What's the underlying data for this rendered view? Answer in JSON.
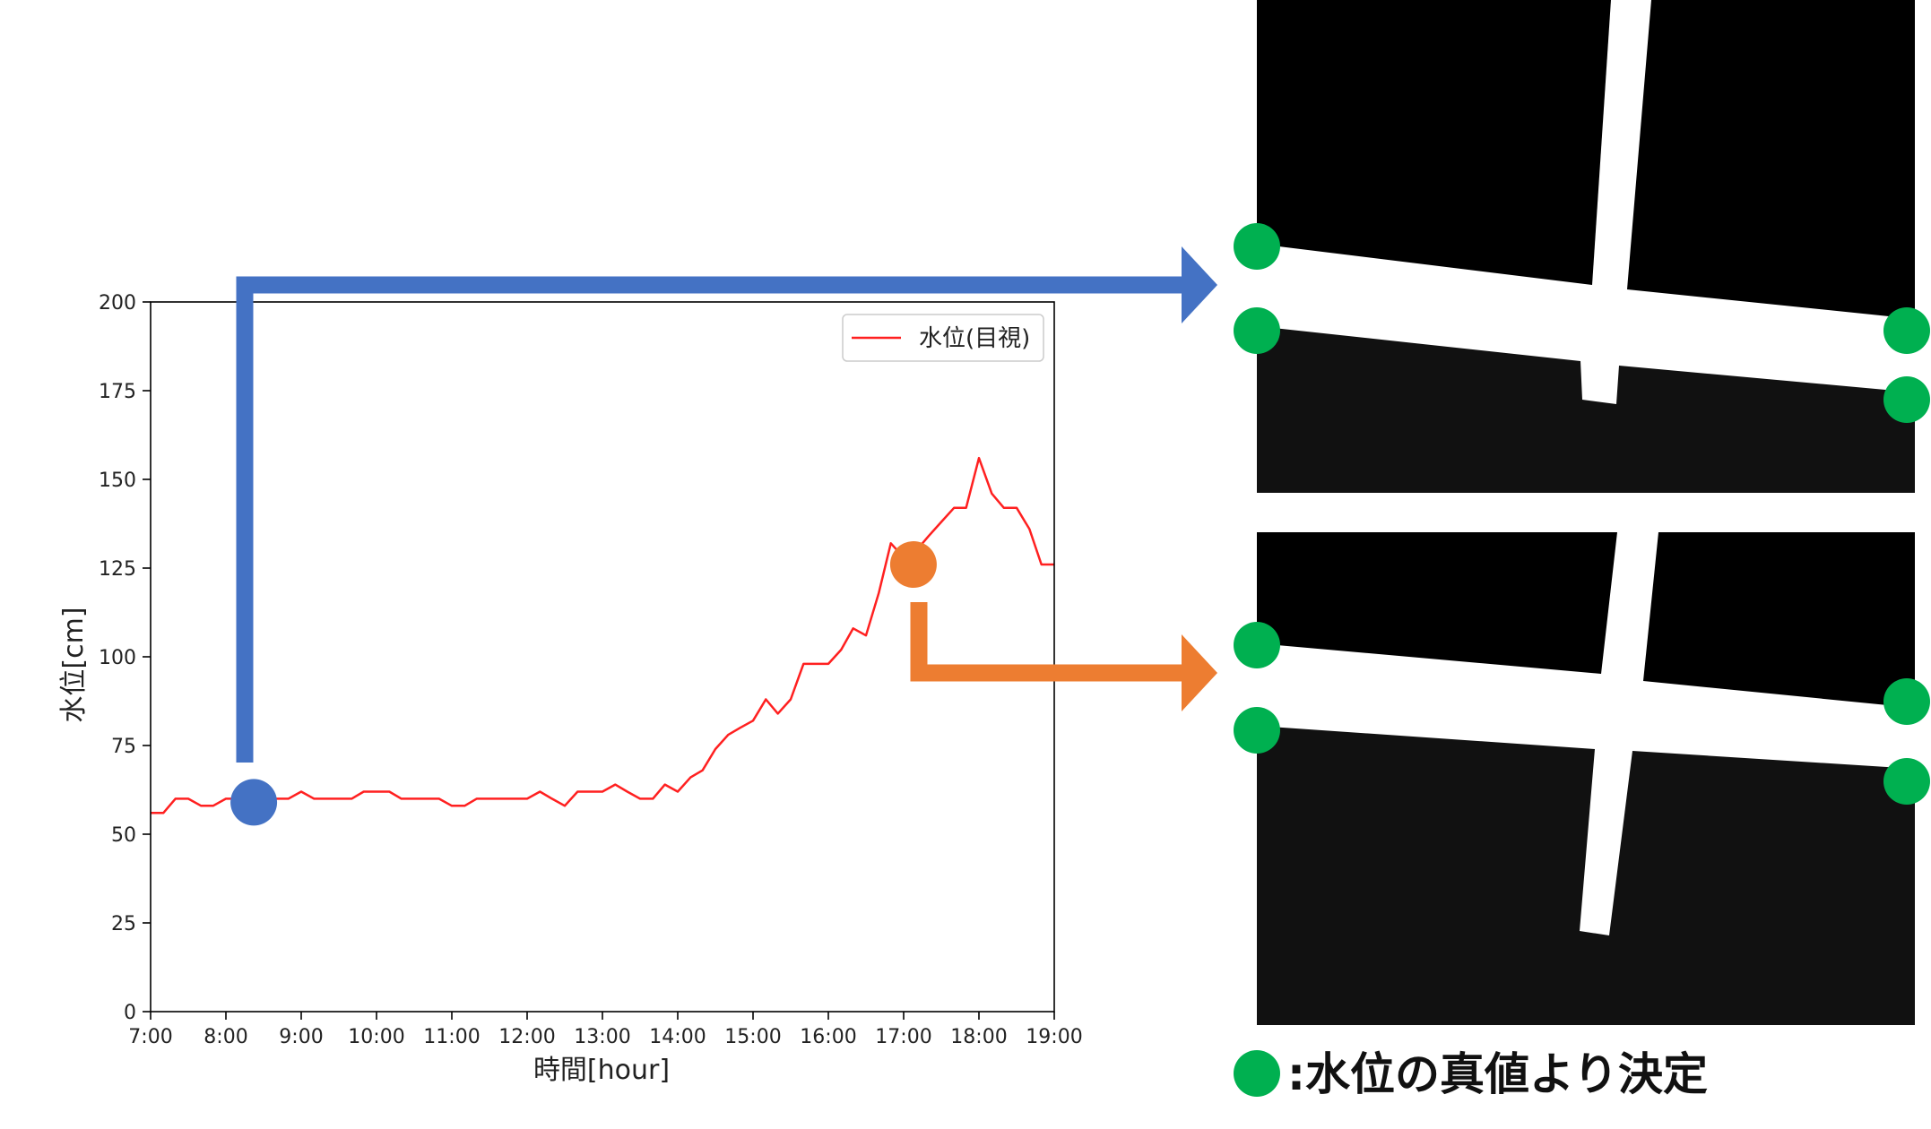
{
  "chart_data": {
    "type": "line",
    "xlabel": "時間[hour]",
    "ylabel": "水位[cm]",
    "xlim": [
      7,
      19
    ],
    "ylim": [
      0,
      200
    ],
    "x_ticks": [
      7,
      8,
      9,
      10,
      11,
      12,
      13,
      14,
      15,
      16,
      17,
      18,
      19
    ],
    "x_tick_labels": [
      "7:00",
      "8:00",
      "9:00",
      "10:00",
      "11:00",
      "12:00",
      "13:00",
      "14:00",
      "15:00",
      "16:00",
      "17:00",
      "18:00",
      "19:00"
    ],
    "y_ticks": [
      0,
      25,
      50,
      75,
      100,
      125,
      150,
      175,
      200
    ],
    "y_tick_labels": [
      "0",
      "25",
      "50",
      "75",
      "100",
      "125",
      "150",
      "175",
      "200"
    ],
    "grid": false,
    "legend_position": "top-right",
    "series": [
      {
        "name": "水位(目視)",
        "color": "#ff2020",
        "x": [
          7.0,
          7.17,
          7.33,
          7.5,
          7.67,
          7.83,
          8.0,
          8.17,
          8.33,
          8.5,
          8.67,
          8.83,
          9.0,
          9.17,
          9.33,
          9.5,
          9.67,
          9.83,
          10.0,
          10.17,
          10.33,
          10.5,
          10.67,
          10.83,
          11.0,
          11.17,
          11.33,
          11.5,
          11.67,
          11.83,
          12.0,
          12.17,
          12.33,
          12.5,
          12.67,
          12.83,
          13.0,
          13.17,
          13.33,
          13.5,
          13.67,
          13.83,
          14.0,
          14.17,
          14.33,
          14.5,
          14.67,
          14.83,
          15.0,
          15.17,
          15.33,
          15.5,
          15.67,
          15.83,
          16.0,
          16.17,
          16.33,
          16.5,
          16.67,
          16.83,
          17.0,
          17.17,
          17.33,
          17.5,
          17.67,
          17.83,
          18.0,
          18.17,
          18.33,
          18.5,
          18.67,
          18.83,
          19.0
        ],
        "values": [
          56,
          56,
          60,
          60,
          58,
          58,
          60,
          60,
          60,
          60,
          60,
          60,
          62,
          60,
          60,
          60,
          60,
          62,
          62,
          62,
          60,
          60,
          60,
          60,
          58,
          58,
          60,
          60,
          60,
          60,
          60,
          62,
          60,
          58,
          62,
          62,
          62,
          64,
          62,
          60,
          60,
          64,
          62,
          66,
          68,
          74,
          78,
          80,
          82,
          88,
          84,
          88,
          98,
          98,
          98,
          102,
          108,
          106,
          118,
          132,
          128,
          130,
          134,
          138,
          142,
          142,
          156,
          146,
          142,
          142,
          136,
          126,
          126
        ]
      }
    ],
    "annotations": [
      {
        "label": "",
        "x": 8.37,
        "y": 59,
        "color": "#4472c4"
      },
      {
        "label": "",
        "x": 17.13,
        "y": 126,
        "color": "#ed7d31"
      }
    ]
  },
  "caption": ":水位の真値より決定",
  "colors": {
    "marker_green": "#00b050",
    "arrow_blue": "#4472c4",
    "arrow_orange": "#ed7d31",
    "panel_black": "#000000",
    "panel_dark": "#111111"
  }
}
